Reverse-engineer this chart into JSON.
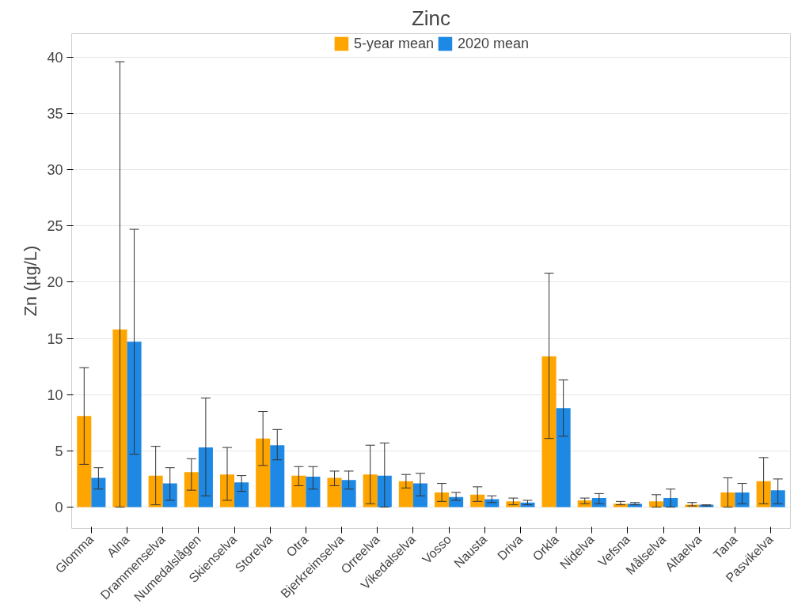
{
  "chart_data": {
    "type": "bar",
    "title": "Zinc",
    "ylabel": "Zn (µg/L)",
    "categories": [
      "Glomma",
      "Alna",
      "Drammenselva",
      "Numedalslågen",
      "Skienselva",
      "Storelva",
      "Otra",
      "Bjerkreimselva",
      "Orreelva",
      "Vikedalselva",
      "Vosso",
      "Nausta",
      "Driva",
      "Orkla",
      "Nidelva",
      "Vefsna",
      "Målselva",
      "Altaelva",
      "Tana",
      "Pasvikelva"
    ],
    "series": [
      {
        "name": "5-year mean",
        "color": "#ffa500",
        "values": [
          8.1,
          15.8,
          2.8,
          3.1,
          2.9,
          6.1,
          2.8,
          2.6,
          2.9,
          2.3,
          1.3,
          1.1,
          0.5,
          13.4,
          0.6,
          0.3,
          0.5,
          0.2,
          1.3,
          2.3
        ],
        "errors": [
          [
            3.8,
            12.4
          ],
          [
            0,
            39.6
          ],
          [
            0.2,
            5.4
          ],
          [
            1.5,
            4.3
          ],
          [
            0.6,
            5.3
          ],
          [
            3.7,
            8.5
          ],
          [
            1.9,
            3.6
          ],
          [
            1.9,
            3.2
          ],
          [
            0.3,
            5.5
          ],
          [
            1.7,
            2.9
          ],
          [
            0.5,
            2.1
          ],
          [
            0.5,
            1.8
          ],
          [
            0.2,
            0.8
          ],
          [
            6.1,
            20.8
          ],
          [
            0.3,
            0.8
          ],
          [
            0.2,
            0.5
          ],
          [
            0,
            1.1
          ],
          [
            0.1,
            0.4
          ],
          [
            0,
            2.6
          ],
          [
            0.3,
            4.4
          ]
        ]
      },
      {
        "name": "2020 mean",
        "color": "#1e88e5",
        "values": [
          2.6,
          14.7,
          2.1,
          5.3,
          2.2,
          5.5,
          2.7,
          2.4,
          2.8,
          2.1,
          0.9,
          0.7,
          0.4,
          8.8,
          0.8,
          0.3,
          0.8,
          0.2,
          1.3,
          1.5
        ],
        "errors": [
          [
            1.6,
            3.5
          ],
          [
            4.7,
            24.7
          ],
          [
            0.6,
            3.5
          ],
          [
            1.0,
            9.7
          ],
          [
            1.4,
            2.8
          ],
          [
            4.2,
            6.9
          ],
          [
            1.6,
            3.6
          ],
          [
            1.6,
            3.2
          ],
          [
            0,
            5.7
          ],
          [
            1.0,
            3.0
          ],
          [
            0.6,
            1.3
          ],
          [
            0.4,
            1.0
          ],
          [
            0.2,
            0.6
          ],
          [
            6.3,
            11.3
          ],
          [
            0.3,
            1.2
          ],
          [
            0.2,
            0.4
          ],
          [
            0,
            1.6
          ],
          [
            0.1,
            0.2
          ],
          [
            0.3,
            2.1
          ],
          [
            0.3,
            2.5
          ]
        ]
      }
    ],
    "ylim": [
      -1.9,
      42.1
    ],
    "yticks": [
      0,
      5,
      10,
      15,
      20,
      25,
      30,
      35,
      40
    ],
    "grid": "y",
    "legend": "top"
  }
}
